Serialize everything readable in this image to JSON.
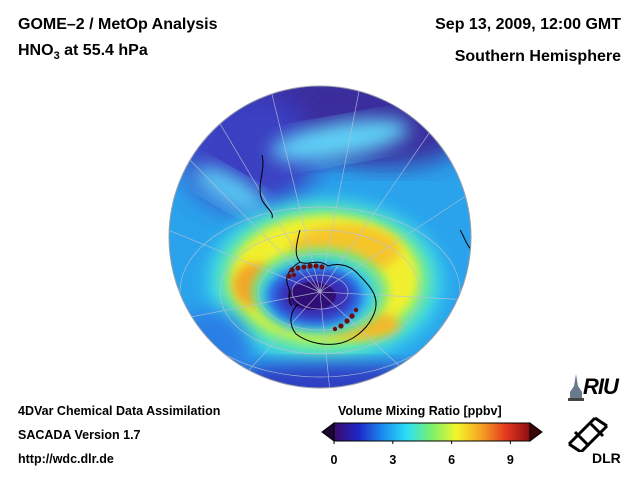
{
  "header": {
    "title": "GOME–2 / MetOp Analysis",
    "species": "HNO",
    "species_sub": "3",
    "level": " at 55.4 hPa",
    "date": "Sep 13, 2009, 12:00 GMT",
    "region": "Southern Hemisphere"
  },
  "footer": {
    "line1": "4DVar Chemical Data Assimilation",
    "line2": "SACADA Version 1.7",
    "line3": "http://wdc.dlr.de"
  },
  "colorbar": {
    "title": "Volume Mixing Ratio [ppbv]",
    "ticks": [
      "0",
      "3",
      "6",
      "9"
    ],
    "min": 0,
    "max": 10,
    "colors": [
      "#3a0a6a",
      "#1f26c8",
      "#1a8cf0",
      "#2ee0f5",
      "#7cf06a",
      "#f4f52a",
      "#f6a323",
      "#e63a1e",
      "#8a0d12"
    ]
  },
  "logos": {
    "riu": "RIU",
    "dlr": "DLR"
  }
}
